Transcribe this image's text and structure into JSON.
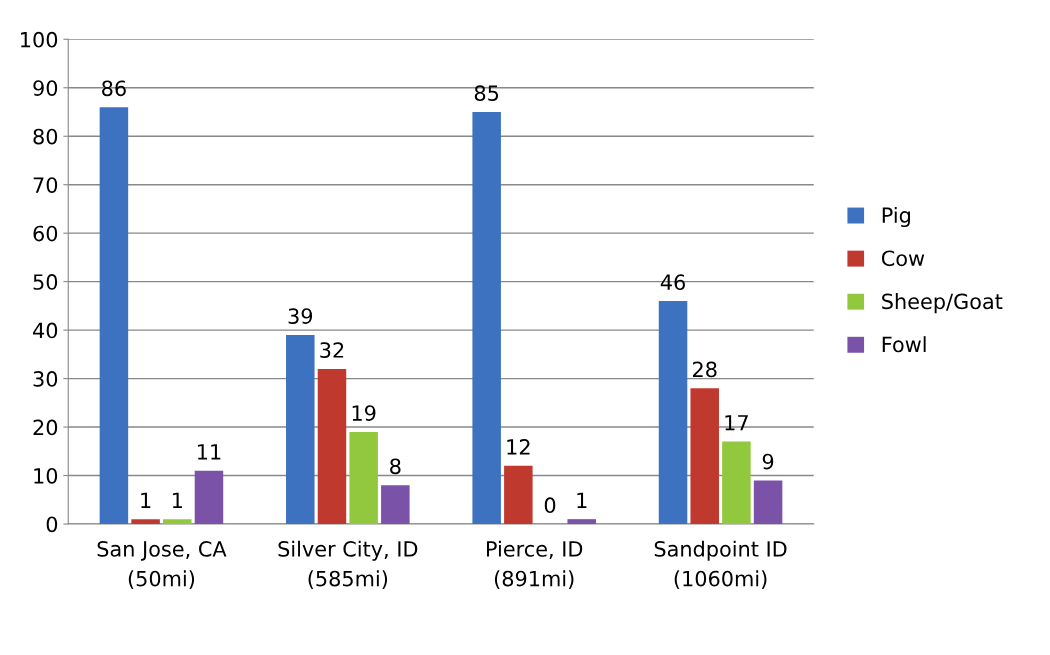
{
  "chart_data": {
    "type": "bar",
    "categories": [
      "San Jose, CA\n(50mi)",
      "Silver City, ID\n(585mi)",
      "Pierce, ID\n(891mi)",
      "Sandpoint ID\n(1060mi)"
    ],
    "series": [
      {
        "name": "Pig",
        "color": "#3d72c0",
        "values": [
          86,
          39,
          85,
          46
        ]
      },
      {
        "name": "Cow",
        "color": "#c0392f",
        "values": [
          1,
          32,
          12,
          28
        ]
      },
      {
        "name": "Sheep/Goat",
        "color": "#92c83e",
        "values": [
          1,
          19,
          0,
          17
        ]
      },
      {
        "name": "Fowl",
        "color": "#7a52a8",
        "values": [
          11,
          8,
          1,
          9
        ]
      }
    ],
    "ylim": [
      0,
      100
    ],
    "yticks": [
      0,
      10,
      20,
      30,
      40,
      50,
      60,
      70,
      80,
      90,
      100
    ],
    "grid": "y",
    "legend": "right",
    "data_labels": true
  }
}
